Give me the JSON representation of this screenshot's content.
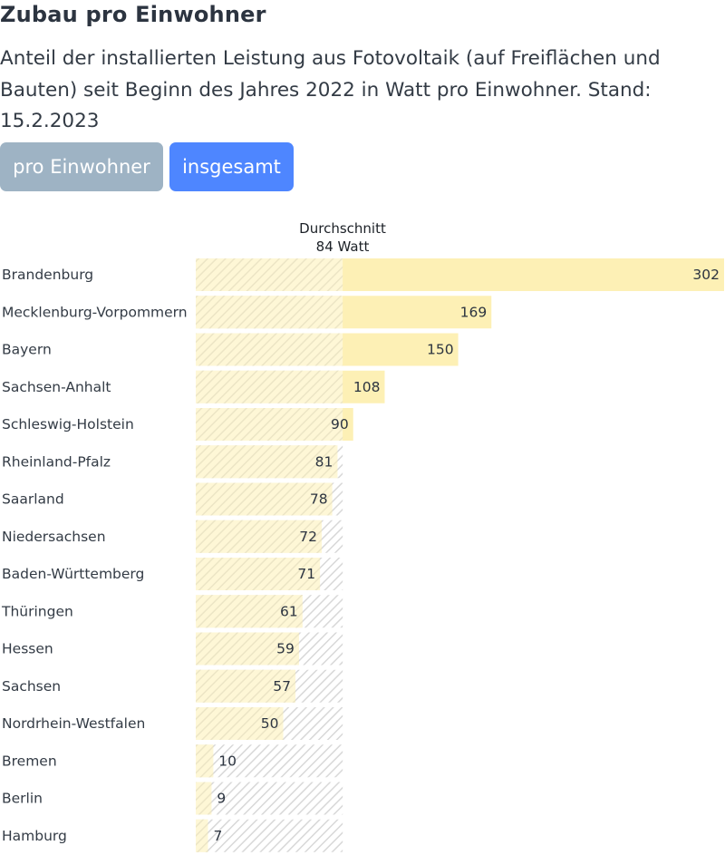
{
  "title": "Zubau pro Einwohner",
  "subtitle": "Anteil der installierten Leistung aus Fotovoltaik (auf Freiflächen und Bauten) seit Beginn des Jahres 2022 in Watt pro Einwohner. Stand: 15.2.2023",
  "toggle": {
    "per_capita_label": "pro Einwohner",
    "total_label": "insgesamt"
  },
  "colors": {
    "bar": "#fdf0b5",
    "hatch_stroke": "#d8d8d8",
    "value_text": "#2c3440",
    "label_text": "#333b45",
    "button_inactive": "#9eb3c4",
    "button_active": "#4e86ff"
  },
  "chart_data": {
    "type": "bar",
    "orientation": "horizontal",
    "unit": "Watt",
    "average": {
      "label": "Durchschnitt",
      "value_label": "84 Watt",
      "value": 84
    },
    "categories": [
      "Brandenburg",
      "Mecklenburg-Vorpommern",
      "Bayern",
      "Sachsen-Anhalt",
      "Schleswig-Holstein",
      "Rheinland-Pfalz",
      "Saarland",
      "Niedersachsen",
      "Baden-Württemberg",
      "Thüringen",
      "Hessen",
      "Sachsen",
      "Nordrhein-Westfalen",
      "Bremen",
      "Berlin",
      "Hamburg"
    ],
    "values": [
      302,
      169,
      150,
      108,
      90,
      81,
      78,
      72,
      71,
      61,
      59,
      57,
      50,
      10,
      9,
      7
    ],
    "xlim": [
      0,
      302
    ],
    "grid": false,
    "legend": "none"
  }
}
